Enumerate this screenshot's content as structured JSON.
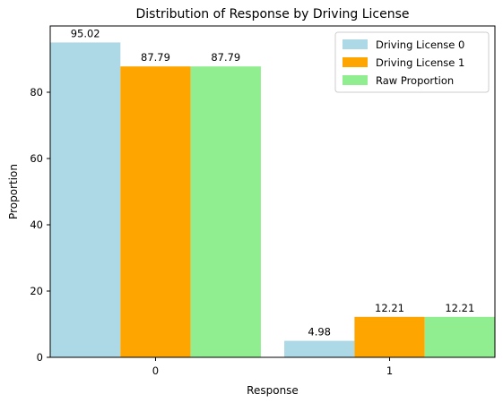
{
  "chart_data": {
    "type": "bar",
    "title": "Distribution of Response by Driving License",
    "xlabel": "Response",
    "ylabel": "Proportion",
    "categories": [
      "0",
      "1"
    ],
    "ylim": [
      0,
      100
    ],
    "yticks": [
      0,
      20,
      40,
      60,
      80
    ],
    "series": [
      {
        "name": "Driving License 0",
        "color": "#add8e6",
        "values": [
          95.02,
          4.98
        ],
        "labels": [
          "95.02",
          "4.98"
        ]
      },
      {
        "name": "Driving License 1",
        "color": "#ffa500",
        "values": [
          87.79,
          12.21
        ],
        "labels": [
          "87.79",
          "12.21"
        ]
      },
      {
        "name": "Raw Proportion",
        "color": "#90ee90",
        "values": [
          87.79,
          12.21
        ],
        "labels": [
          "87.79",
          "12.21"
        ]
      }
    ],
    "legend": "top-right",
    "grid": false
  }
}
